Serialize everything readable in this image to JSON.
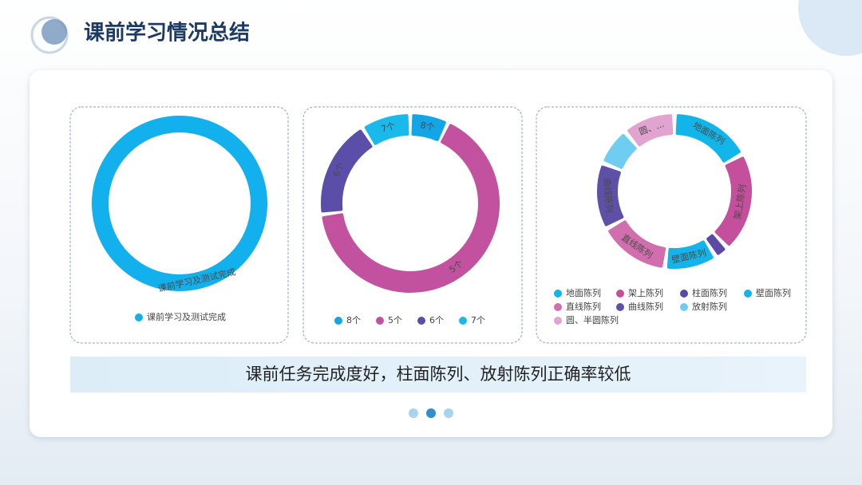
{
  "title": "课前学习情况总结",
  "summary": "课前任务完成度好，柱面陈列、放射陈列正确率较低",
  "chart_data": [
    {
      "type": "donut",
      "categories": [
        "课前学习及测试完成"
      ],
      "values": [
        100
      ],
      "colors": [
        "#12b0ec"
      ]
    },
    {
      "type": "donut",
      "categories": [
        "8个",
        "5个",
        "6个",
        "7个"
      ],
      "values": [
        7,
        66,
        18,
        9
      ],
      "colors": [
        "#12a6e6",
        "#c2519f",
        "#5b4ea8",
        "#1ab9ec"
      ]
    },
    {
      "type": "donut",
      "categories": [
        "地面陈列",
        "架上陈列",
        "柱面陈列",
        "壁面陈列",
        "直线陈列",
        "曲线陈列",
        "放射陈列",
        "圆、半圆陈列"
      ],
      "labels": [
        "地面陈列",
        "架上陈列",
        null,
        "壁面陈列",
        "直线陈列",
        "曲线陈列",
        null,
        "圆、..."
      ],
      "values": [
        17,
        21,
        3,
        11,
        15,
        14,
        8,
        11
      ],
      "colors": [
        "#12b5ea",
        "#c4509d",
        "#5a4aa6",
        "#14b4ea",
        "#d16fae",
        "#5e50a6",
        "#6fcdf2",
        "#e1a4d0"
      ]
    }
  ]
}
